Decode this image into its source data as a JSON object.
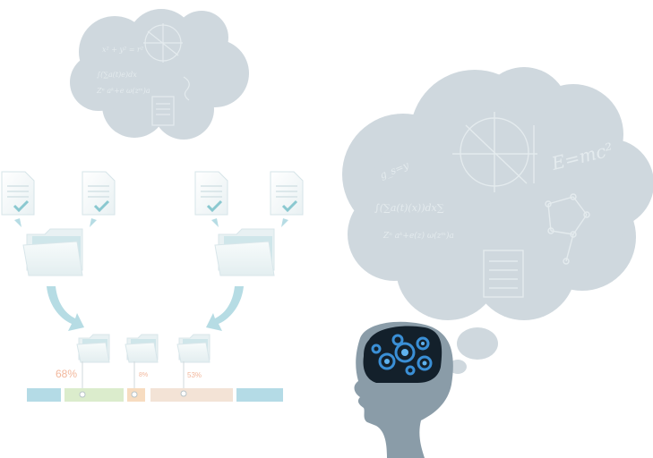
{
  "colors": {
    "cloud": "#cfd8de",
    "cloud_ink": "#e7edf0",
    "head": "#8a9ca8",
    "brain_bg": "#13202b",
    "gear": "#3a8fd6",
    "doc_check": "#8ac8d0",
    "folder": "#eef4f5",
    "folder_inner": "#cfe6ea",
    "arrow": "#b6dce4",
    "pct_text": "#f2b79c",
    "bar_blue": "#b4dbe6",
    "bar_green": "#dbeccc",
    "bar_orange": "#f7dcc0",
    "bar_peach": "#f3e3d6"
  },
  "formulas": {
    "small": [
      "x² + y² = r²",
      "∫(∑a(t)e)dx",
      "Zⁿ aᵏ+e ω(zᵐ)a"
    ],
    "large": [
      "g_s=y",
      "∫(∑a(t)(x))dx∑",
      "Zⁿ aᵏ+e(z) ω(zᵐ)a",
      "E=mc²"
    ]
  },
  "progress": {
    "items": [
      {
        "label": "68%",
        "value": 68
      },
      {
        "label": "8%",
        "value": 8
      },
      {
        "label": "53%",
        "value": 53
      }
    ]
  },
  "icons": [
    "document-check-icon",
    "folder-icon",
    "gear-icon",
    "head-silhouette-icon",
    "thought-cloud-icon"
  ]
}
